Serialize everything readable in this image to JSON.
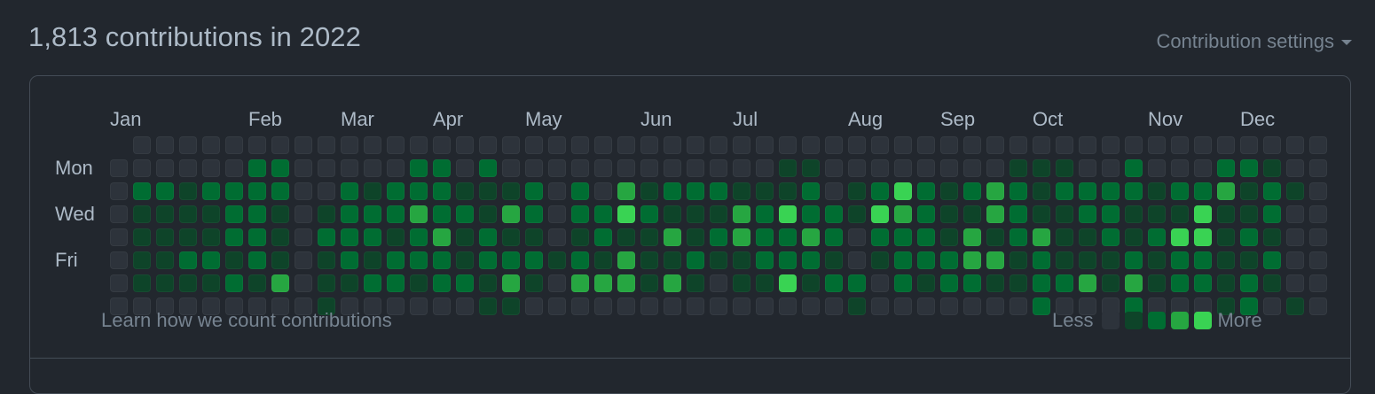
{
  "header": {
    "title": "1,813 contributions in 2022",
    "settings_label": "Contribution settings"
  },
  "calendar": {
    "months": [
      "Jan",
      "Feb",
      "Mar",
      "Apr",
      "May",
      "Jun",
      "Jul",
      "Aug",
      "Sep",
      "Oct",
      "Nov",
      "Dec"
    ],
    "day_labels": [
      "Mon",
      "Wed",
      "Fri"
    ],
    "levels_colors": [
      "#2d333b",
      "#0e4429",
      "#006d32",
      "#26a641",
      "#39d353"
    ],
    "grid": [
      "x 0 0 0 0 0 0 0 0 0 0 0 0 0 0 0 0 0 0 0 0 0 0 0 0 0 0 0 0 0 0 0 0 0 0 0 0 0 0 0 0 0 0 0 0 0 0 0 0 0 0 0 0",
      "0 0 0 0 0 0 2 2 0 0 0 0 0 2 2 0 2 0 0 0 0 0 0 0 0 0 0 0 0 1 1 0 0 0 0 0 0 0 0 1 1 1 0 0 2 0 0 0 2 2 1 0 0",
      "0 2 2 1 2 2 2 2 0 0 2 1 2 2 2 1 1 1 2 0 2 0 3 1 2 2 2 1 1 1 2 0 1 2 4 2 1 2 3 2 1 2 2 2 2 1 2 2 3 1 2 1 0",
      "0 1 1 1 1 2 2 1 0 1 2 2 2 3 2 2 1 3 2 0 2 2 4 2 1 1 1 3 2 4 2 2 1 4 3 2 1 1 3 2 1 1 2 2 1 1 1 4 1 1 2 0 0",
      "0 1 1 1 1 2 2 1 0 2 2 2 1 2 3 1 2 1 1 0 1 2 1 1 3 1 2 3 2 2 3 2 0 2 2 2 1 3 1 2 3 1 1 2 1 2 4 4 1 2 1 0 0",
      "0 1 1 2 2 1 2 1 0 1 2 1 2 2 2 1 2 2 2 1 2 1 3 1 1 2 1 1 2 2 2 1 0 1 2 2 2 3 3 1 2 1 1 1 2 1 2 2 1 1 2 0 0",
      "0 1 1 1 1 2 1 3 0 1 1 2 2 1 2 2 1 3 1 0 3 3 3 1 3 1 0 1 1 4 1 2 2 0 2 1 2 2 1 1 2 2 3 1 3 1 2 2 1 2 1 0 0",
      "0 0 0 0 0 0 0 0 0 1 0 0 0 0 0 0 1 1 0 0 0 0 0 0 0 0 0 0 0 0 0 0 1 0 0 0 0 0 0 0 2 0 0 0 2 0 0 0 1 2 0 1 0"
    ]
  },
  "footer": {
    "learn_link": "Learn how we count contributions",
    "legend_less": "Less",
    "legend_more": "More"
  }
}
